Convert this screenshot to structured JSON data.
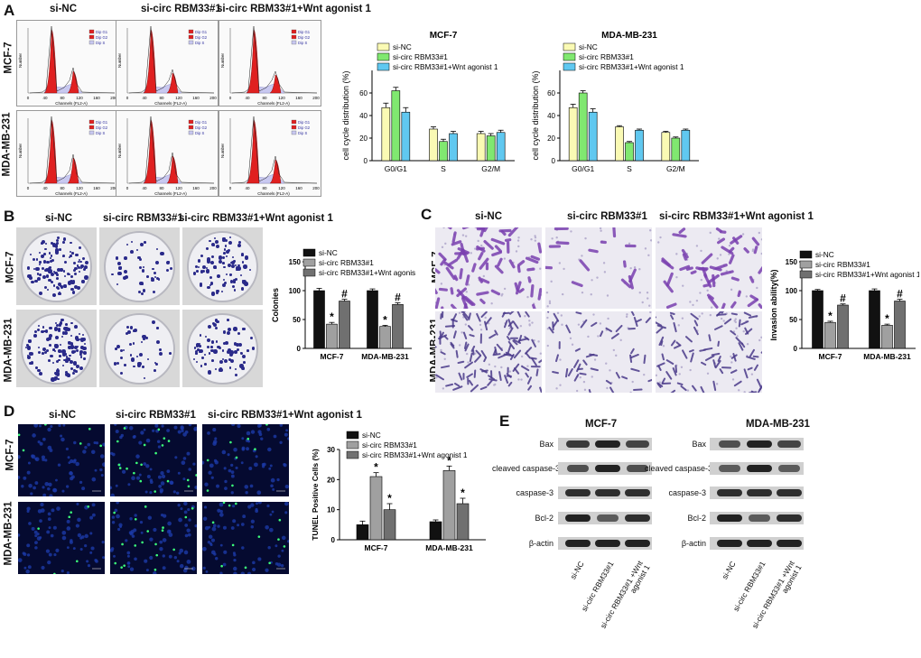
{
  "panels": {
    "A": "A",
    "B": "B",
    "C": "C",
    "D": "D",
    "E": "E"
  },
  "groups": [
    "si-NC",
    "si-circ RBM33#1",
    "si-circ RBM33#1+Wnt agonist 1"
  ],
  "cell_lines": [
    "MCF-7",
    "MDA-MB-231"
  ],
  "flow": {
    "legend": [
      "Dip G1",
      "Dip G2",
      "Dip S"
    ],
    "xlabel": "Channels (FL2-A)",
    "ylabel": "Number",
    "xticks": [
      "0",
      "40",
      "80",
      "120",
      "160",
      "200"
    ]
  },
  "wb": {
    "titles": [
      "MCF-7",
      "MDA-MB-231"
    ],
    "rows": [
      "Bax",
      "cleaved caspase-3",
      "caspase-3",
      "Bcl-2",
      "β-actin"
    ],
    "lanes": [
      "si-NC",
      "si-circ RBM33#1",
      "si-circ RBM33#1 +Wnt agonist 1"
    ]
  },
  "chart_data": [
    {
      "type": "bar",
      "title": "MCF-7",
      "ylabel": "cell cycle distribution (%)",
      "categories": [
        "G0/G1",
        "S",
        "G2/M"
      ],
      "ylim": [
        0,
        80
      ],
      "yticks": [
        0,
        20,
        40,
        60
      ],
      "series": [
        {
          "name": "si-NC",
          "values": [
            47,
            28,
            24
          ],
          "err": [
            4,
            2,
            2
          ]
        },
        {
          "name": "si-circ RBM33#1",
          "values": [
            62,
            17,
            22
          ],
          "err": [
            3,
            2,
            2
          ]
        },
        {
          "name": "si-circ RBM33#1+Wnt agonist 1",
          "values": [
            43,
            24,
            25
          ],
          "err": [
            4,
            2,
            2
          ]
        }
      ],
      "colors": [
        "#fafab4",
        "#80e870",
        "#60c8f0"
      ],
      "legend": "top-left",
      "asterisks": []
    },
    {
      "type": "bar",
      "title": "MDA-MB-231",
      "ylabel": "cell cycle distribution (%)",
      "categories": [
        "G0/G1",
        "S",
        "G2/M"
      ],
      "ylim": [
        0,
        80
      ],
      "yticks": [
        0,
        20,
        40,
        60
      ],
      "series": [
        {
          "name": "si-NC",
          "values": [
            47,
            30,
            25
          ],
          "err": [
            3,
            1,
            1
          ]
        },
        {
          "name": "si-circ RBM33#1",
          "values": [
            60,
            16,
            20
          ],
          "err": [
            2,
            1,
            1
          ]
        },
        {
          "name": "si-circ RBM33#1+Wnt agonist 1",
          "values": [
            43,
            27,
            27
          ],
          "err": [
            3,
            1,
            1
          ]
        }
      ],
      "colors": [
        "#fafab4",
        "#80e870",
        "#60c8f0"
      ],
      "legend": "top-left",
      "asterisks": []
    },
    {
      "type": "bar",
      "title": "",
      "ylabel": "Colonies",
      "categories": [
        "MCF-7",
        "MDA-MB-231"
      ],
      "ylim": [
        0,
        150
      ],
      "yticks": [
        0,
        50,
        100,
        150
      ],
      "series": [
        {
          "name": "si-NC",
          "values": [
            100,
            100
          ],
          "err": [
            4,
            3
          ]
        },
        {
          "name": "si-circ RBM33#1",
          "values": [
            42,
            38
          ],
          "err": [
            3,
            2
          ]
        },
        {
          "name": "si-circ RBM33#1+Wnt agonist 1",
          "values": [
            82,
            76
          ],
          "err": [
            3,
            3
          ]
        }
      ],
      "colors": [
        "#111111",
        "#a0a0a0",
        "#707070"
      ],
      "legend": "top-right",
      "marks": [
        [
          "",
          "*",
          "#"
        ],
        [
          "",
          "*",
          "#"
        ]
      ]
    },
    {
      "type": "bar",
      "title": "",
      "ylabel": "Invasion ability(%)",
      "categories": [
        "MCF-7",
        "MDA-MB-231"
      ],
      "ylim": [
        0,
        150
      ],
      "yticks": [
        0,
        50,
        100,
        150
      ],
      "series": [
        {
          "name": "si-NC",
          "values": [
            100,
            100
          ],
          "err": [
            2,
            3
          ]
        },
        {
          "name": "si-circ RBM33#1",
          "values": [
            45,
            40
          ],
          "err": [
            2,
            2
          ]
        },
        {
          "name": "si-circ RBM33#1+Wnt agonist 1",
          "values": [
            75,
            82
          ],
          "err": [
            2,
            3
          ]
        }
      ],
      "colors": [
        "#111111",
        "#a0a0a0",
        "#707070"
      ],
      "legend": "top-right",
      "marks": [
        [
          "",
          "*",
          "#"
        ],
        [
          "",
          "*",
          "#"
        ]
      ]
    },
    {
      "type": "bar",
      "title": "",
      "ylabel": "TUNEL Positive Cells (%)",
      "categories": [
        "MCF-7",
        "MDA-MB-231"
      ],
      "ylim": [
        0,
        30
      ],
      "yticks": [
        0,
        10,
        20,
        30
      ],
      "series": [
        {
          "name": "si-NC",
          "values": [
            5,
            6
          ],
          "err": [
            1.2,
            0.6
          ]
        },
        {
          "name": "si-circ RBM33#1",
          "values": [
            21,
            23
          ],
          "err": [
            1.3,
            1.5
          ]
        },
        {
          "name": "si-circ RBM33#1+Wnt agonist 1",
          "values": [
            10,
            12
          ],
          "err": [
            2,
            1.8
          ]
        }
      ],
      "colors": [
        "#111111",
        "#a0a0a0",
        "#707070"
      ],
      "legend": "top-right",
      "marks": [
        [
          "",
          "*",
          "*"
        ],
        [
          "",
          "*",
          "*"
        ]
      ]
    }
  ]
}
